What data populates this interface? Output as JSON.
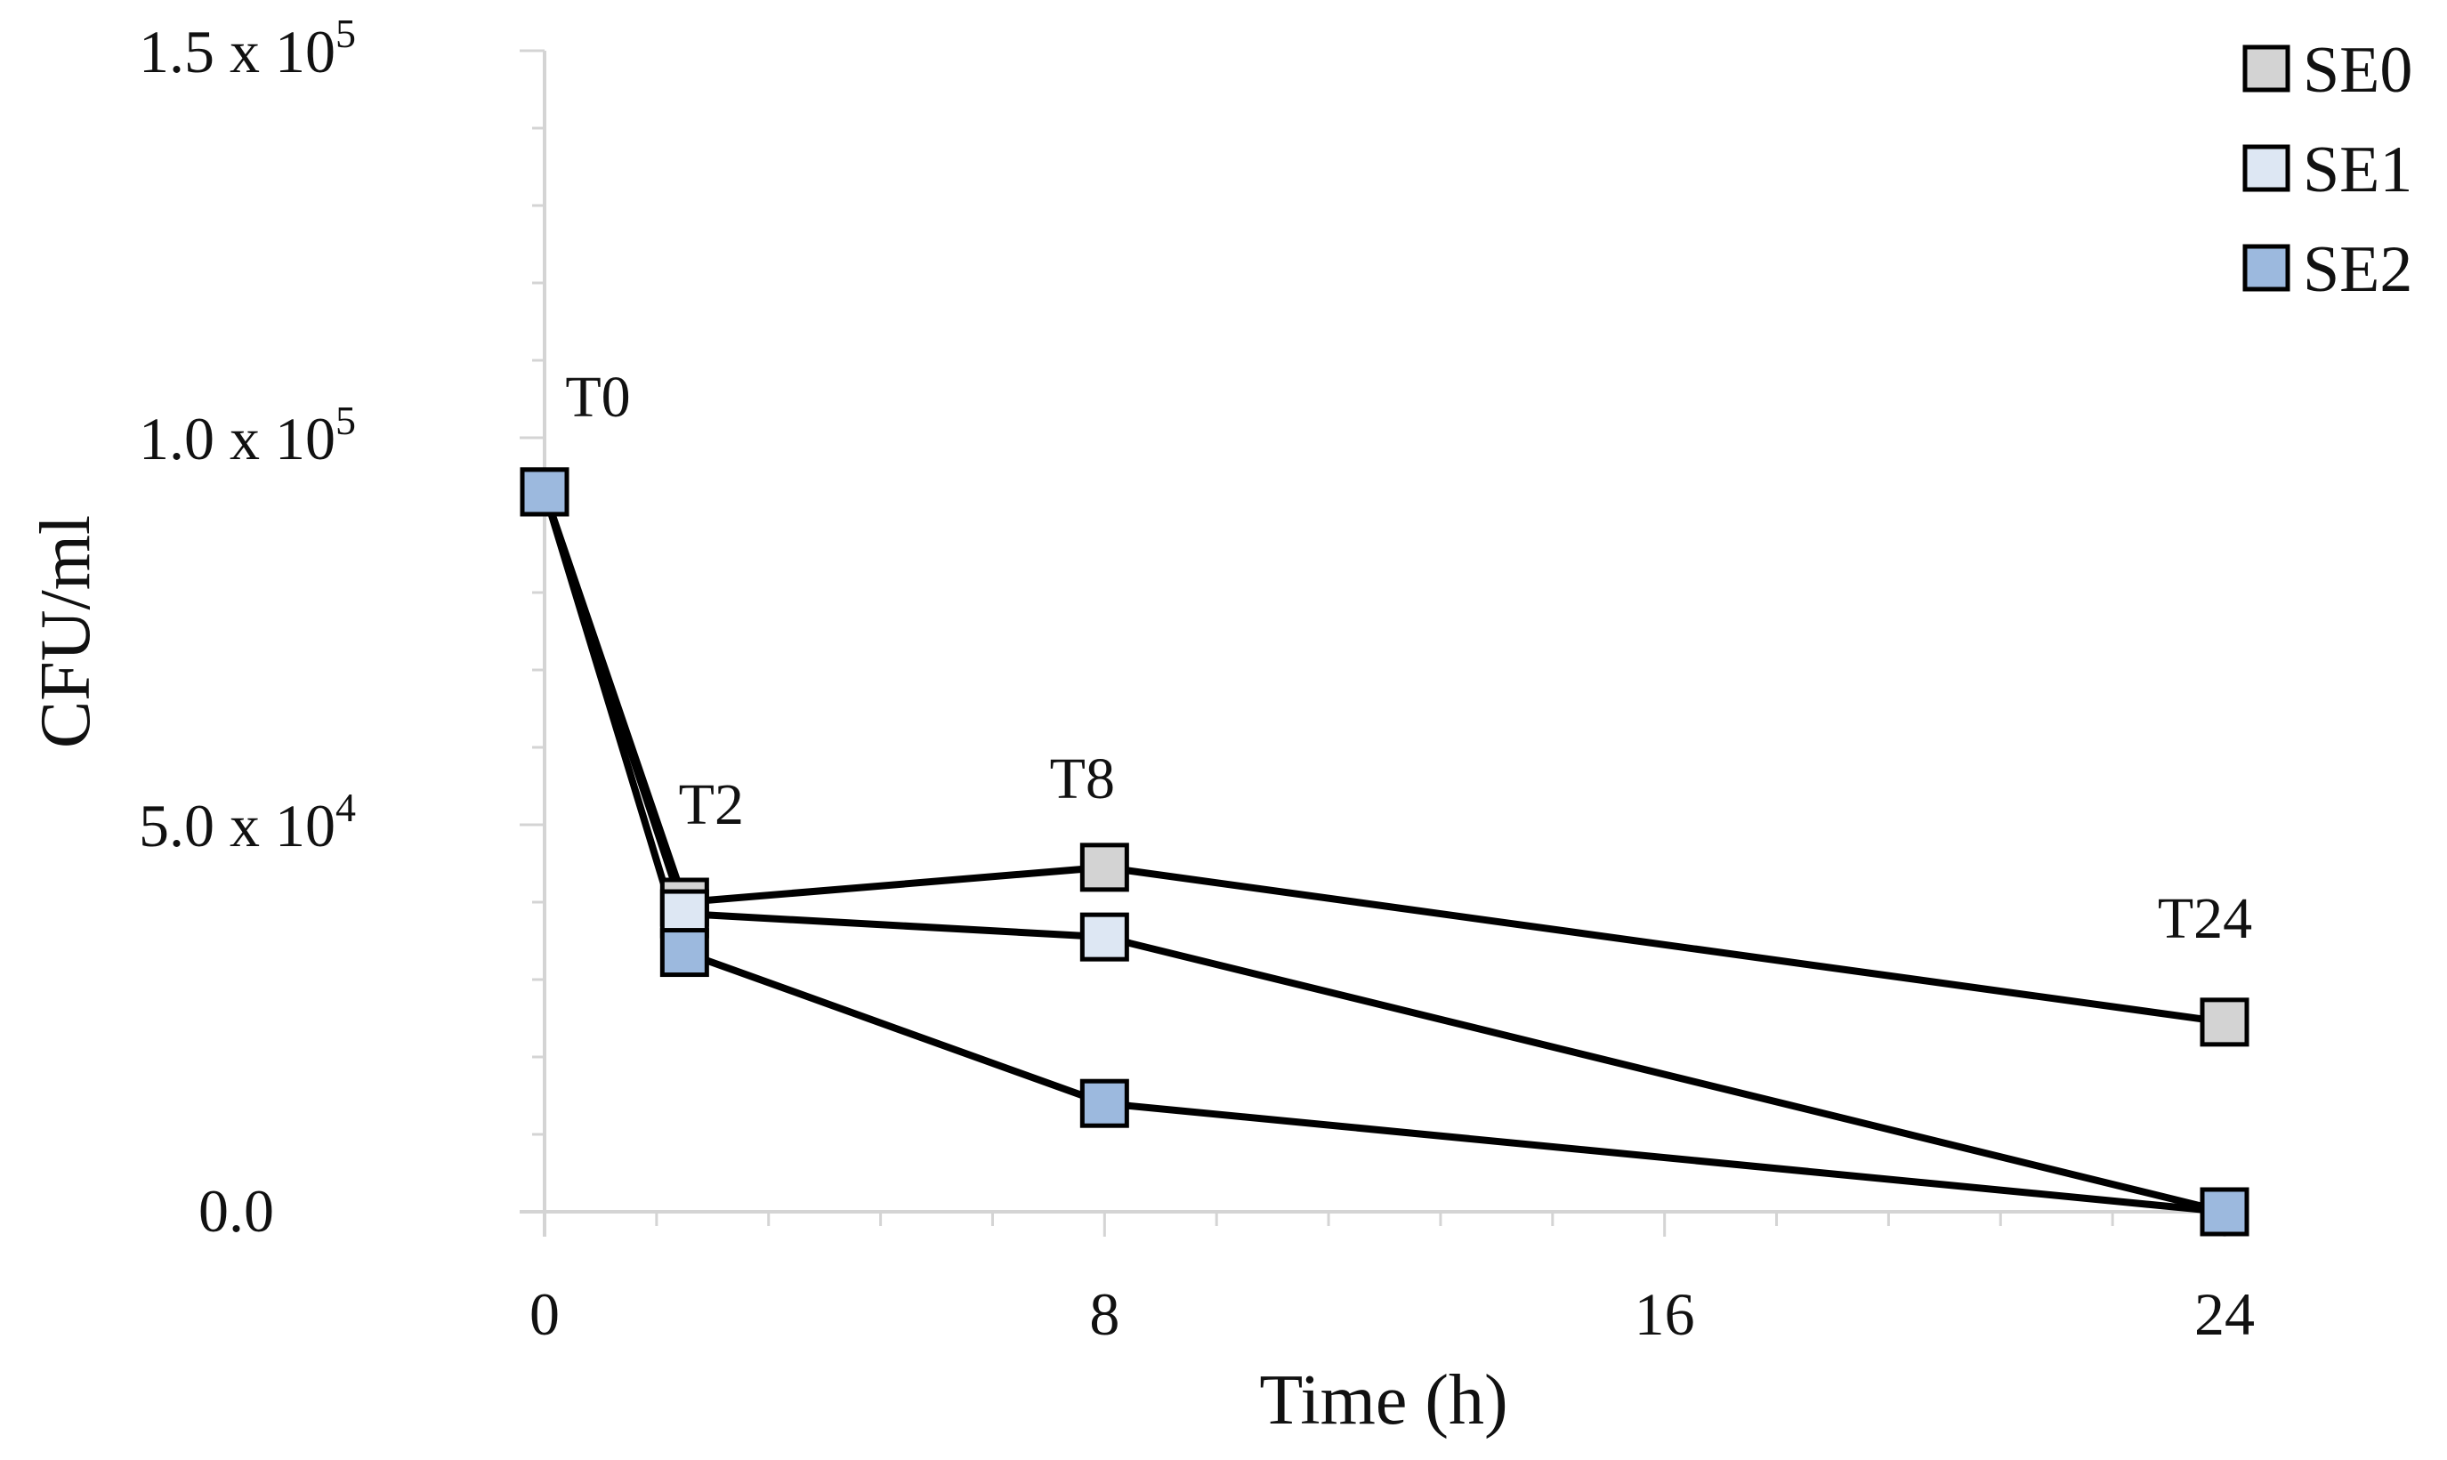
{
  "chart_data": {
    "type": "line",
    "x": [
      0,
      2,
      8,
      24
    ],
    "xticks": [
      0,
      8,
      16,
      24
    ],
    "xtick_labels": [
      "0",
      "8",
      "16",
      "24"
    ],
    "xlim": [
      0,
      24
    ],
    "ylim": [
      0,
      150000
    ],
    "yticks": [
      {
        "value": 0,
        "mantissa": "0.0",
        "exponent": ""
      },
      {
        "value": 50000,
        "mantissa": "5.0 x 10",
        "exponent": "4"
      },
      {
        "value": 100000,
        "mantissa": "1.0 x 10",
        "exponent": "5"
      },
      {
        "value": 150000,
        "mantissa": "1.5 x 10",
        "exponent": "5"
      }
    ],
    "xlabel": "Time (h)",
    "ylabel": "CFU/ml",
    "grid": false,
    "legend_position": "top-right",
    "series": [
      {
        "name": "SE0",
        "color": "#d3d3d3",
        "values": [
          93000,
          40000,
          44500,
          24500
        ]
      },
      {
        "name": "SE1",
        "color": "#dde7f3",
        "values": [
          93000,
          38500,
          35500,
          0
        ]
      },
      {
        "name": "SE2",
        "color": "#9cb9de",
        "values": [
          93000,
          33500,
          14000,
          0
        ]
      }
    ],
    "annotations": [
      {
        "text": "T0",
        "x": 0,
        "y": 93000
      },
      {
        "text": "T2",
        "x": 2,
        "y": 40000
      },
      {
        "text": "T8",
        "x": 8,
        "y": 44500
      },
      {
        "text": "T24",
        "x": 24,
        "y": 24500
      }
    ]
  }
}
